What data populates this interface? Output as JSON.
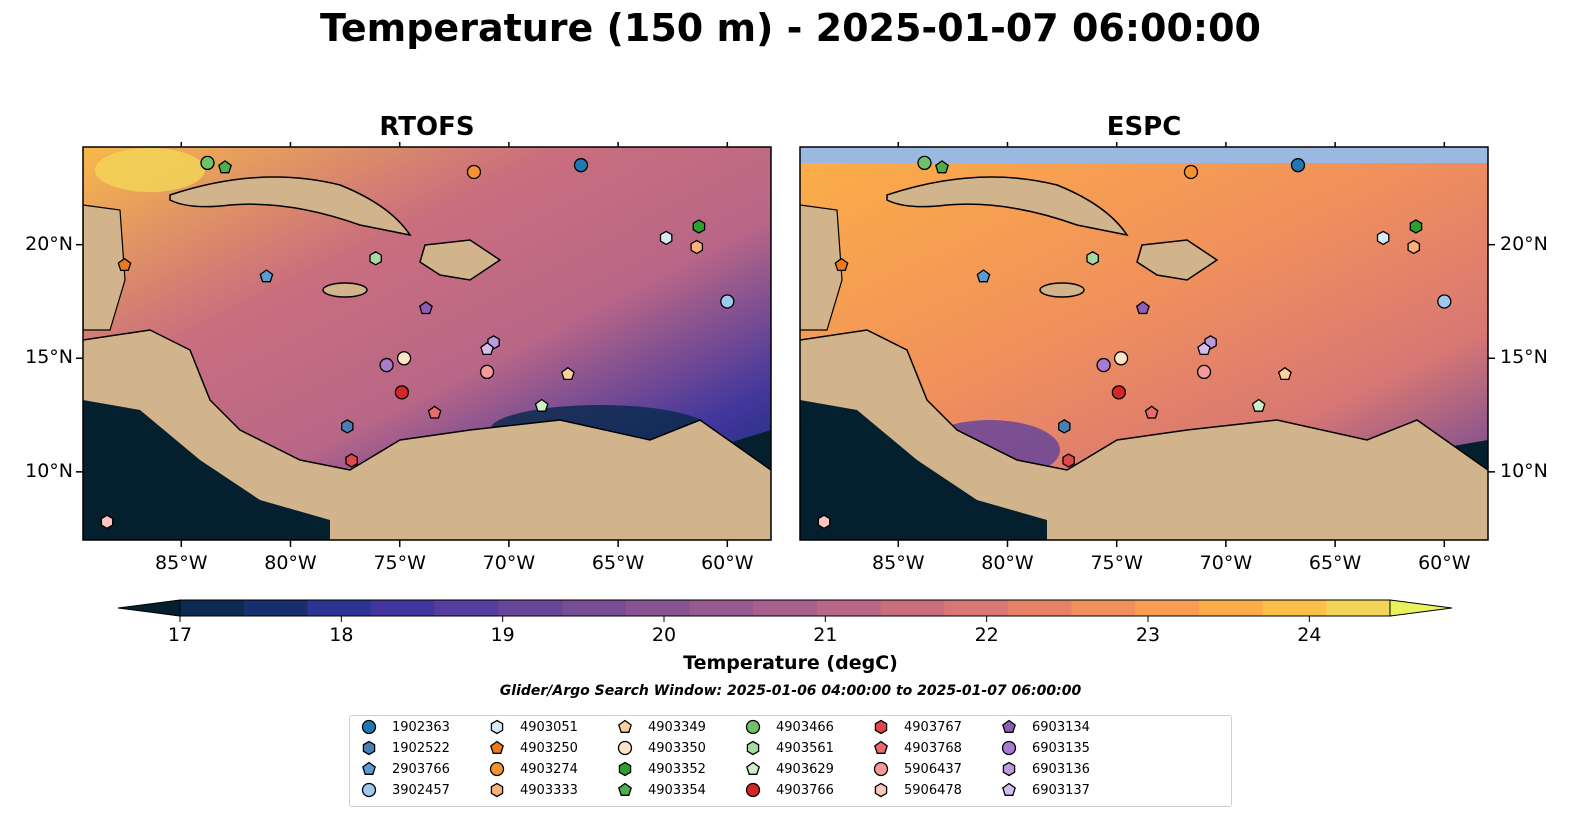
{
  "title": "Temperature (150 m) - 2025-01-07 06:00:00",
  "panels": [
    {
      "name": "RTOFS"
    },
    {
      "name": "ESPC"
    }
  ],
  "map": {
    "lon_range": [
      -89.5,
      -58.0
    ],
    "lat_range": [
      7.0,
      24.3
    ],
    "lon_ticks": [
      -85,
      -80,
      -75,
      -70,
      -65,
      -60
    ],
    "lon_tick_labels": [
      "85°W",
      "80°W",
      "75°W",
      "70°W",
      "65°W",
      "60°W"
    ],
    "lat_ticks": [
      10,
      15,
      20
    ],
    "lat_tick_labels": [
      "10°N",
      "15°N",
      "20°N"
    ],
    "land_color": "#d2b48c",
    "shallow_water_color": "#9bb8e0",
    "coastline_color": "#000000",
    "border_style": "dashed"
  },
  "colorbar": {
    "label": "Temperature (degC)",
    "min": 16.6,
    "max": 24.8,
    "ticks": [
      17,
      18,
      19,
      20,
      21,
      22,
      23,
      24
    ],
    "tick_labels": [
      "17",
      "18",
      "19",
      "20",
      "21",
      "22",
      "23",
      "24"
    ],
    "extend": "both",
    "colormap": "thermal",
    "colors": [
      "#04202f",
      "#0c2a50",
      "#182e6e",
      "#2d3393",
      "#41369d",
      "#553d9e",
      "#674599",
      "#774d95",
      "#875492",
      "#975a90",
      "#a8618c",
      "#b96787",
      "#c96e7e",
      "#d87774",
      "#e58268",
      "#f0905c",
      "#f89d51",
      "#fcad48",
      "#fcc04a",
      "#f3d657",
      "#e9f35f"
    ]
  },
  "search_window": "Glider/Argo Search Window: 2025-01-06 04:00:00 to 2025-01-07 06:00:00",
  "legend": [
    {
      "id": "1902363",
      "marker": "circle",
      "color": "#1f77b4"
    },
    {
      "id": "1902522",
      "marker": "hexagon",
      "color": "#4a7fb5"
    },
    {
      "id": "2903766",
      "marker": "pentagon",
      "color": "#5b9bd5"
    },
    {
      "id": "3902457",
      "marker": "circle",
      "color": "#9ec9ee"
    },
    {
      "id": "4903051",
      "marker": "hexagon",
      "color": "#d6eaf8"
    },
    {
      "id": "4903250",
      "marker": "pentagon",
      "color": "#ee7a1b"
    },
    {
      "id": "4903274",
      "marker": "circle",
      "color": "#f5932f"
    },
    {
      "id": "4903333",
      "marker": "hexagon",
      "color": "#f9b27a"
    },
    {
      "id": "4903349",
      "marker": "pentagon",
      "color": "#fbcf9e"
    },
    {
      "id": "4903350",
      "marker": "circle",
      "color": "#fde4c8"
    },
    {
      "id": "4903352",
      "marker": "hexagon",
      "color": "#2ca02c"
    },
    {
      "id": "4903354",
      "marker": "pentagon",
      "color": "#4daf4a"
    },
    {
      "id": "4903466",
      "marker": "circle",
      "color": "#70c16a"
    },
    {
      "id": "4903561",
      "marker": "hexagon",
      "color": "#a6dca0"
    },
    {
      "id": "4903629",
      "marker": "pentagon",
      "color": "#cbf0c3"
    },
    {
      "id": "4903766",
      "marker": "circle",
      "color": "#d62728"
    },
    {
      "id": "4903767",
      "marker": "hexagon",
      "color": "#e2454a"
    },
    {
      "id": "4903768",
      "marker": "pentagon",
      "color": "#ec6a6c"
    },
    {
      "id": "5906437",
      "marker": "circle",
      "color": "#f59a9a"
    },
    {
      "id": "5906478",
      "marker": "hexagon",
      "color": "#fbc5c0"
    },
    {
      "id": "6903134",
      "marker": "pentagon",
      "color": "#8e5db5"
    },
    {
      "id": "6903135",
      "marker": "circle",
      "color": "#a77bcf"
    },
    {
      "id": "6903136",
      "marker": "hexagon",
      "color": "#bb9ade"
    },
    {
      "id": "6903137",
      "marker": "pentagon",
      "color": "#d5bdf0"
    }
  ],
  "floats": [
    {
      "id": "4903466",
      "lon": -83.8,
      "lat": 23.6
    },
    {
      "id": "4903354",
      "lon": -83.0,
      "lat": 23.4
    },
    {
      "id": "1902363",
      "lon": -66.7,
      "lat": 23.5
    },
    {
      "id": "4903274",
      "lon": -71.6,
      "lat": 23.2
    },
    {
      "id": "4903250",
      "lon": -87.6,
      "lat": 19.1
    },
    {
      "id": "2903766",
      "lon": -81.1,
      "lat": 18.6
    },
    {
      "id": "4903561",
      "lon": -76.1,
      "lat": 19.4
    },
    {
      "id": "4903051",
      "lon": -62.8,
      "lat": 20.3
    },
    {
      "id": "4903352",
      "lon": -61.3,
      "lat": 20.8
    },
    {
      "id": "4903333",
      "lon": -61.4,
      "lat": 19.9
    },
    {
      "id": "3902457",
      "lon": -60.0,
      "lat": 17.5
    },
    {
      "id": "6903134",
      "lon": -73.8,
      "lat": 17.2
    },
    {
      "id": "6903136",
      "lon": -70.7,
      "lat": 15.7
    },
    {
      "id": "6903137",
      "lon": -71.0,
      "lat": 15.4
    },
    {
      "id": "4903350",
      "lon": -74.8,
      "lat": 15.0
    },
    {
      "id": "6903135",
      "lon": -75.6,
      "lat": 14.7
    },
    {
      "id": "5906437",
      "lon": -71.0,
      "lat": 14.4
    },
    {
      "id": "4903349",
      "lon": -67.3,
      "lat": 14.3
    },
    {
      "id": "4903766",
      "lon": -74.9,
      "lat": 13.5
    },
    {
      "id": "4903768",
      "lon": -73.4,
      "lat": 12.6
    },
    {
      "id": "4903629",
      "lon": -68.5,
      "lat": 12.9
    },
    {
      "id": "1902522",
      "lon": -77.4,
      "lat": 12.0
    },
    {
      "id": "4903767",
      "lon": -77.2,
      "lat": 10.5
    },
    {
      "id": "5906478",
      "lon": -88.4,
      "lat": 7.8
    }
  ]
}
